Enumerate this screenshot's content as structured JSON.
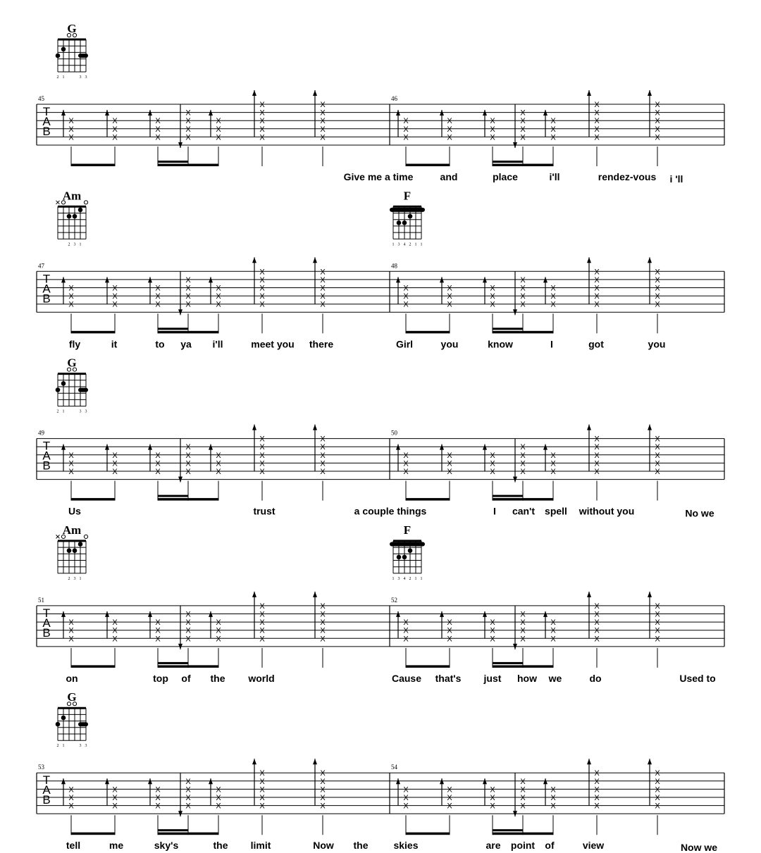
{
  "clef": [
    "T",
    "A",
    "B"
  ],
  "stroke_mark": "X",
  "chords": {
    "G": {
      "name": "G",
      "open": [
        3,
        4
      ],
      "muted": [],
      "dots": [
        [
          6,
          3
        ],
        [
          5,
          2
        ],
        [
          2,
          3
        ],
        [
          1,
          3
        ]
      ],
      "barre": null,
      "fingers": [
        "2",
        "1",
        "",
        "",
        "3",
        "3"
      ]
    },
    "Am": {
      "name": "Am",
      "open": [
        5,
        1
      ],
      "muted": [
        6
      ],
      "dots": [
        [
          4,
          2
        ],
        [
          3,
          2
        ],
        [
          2,
          1
        ]
      ],
      "barre": null,
      "fingers": [
        "",
        "",
        "2",
        "3",
        "1",
        ""
      ]
    },
    "F": {
      "name": "F",
      "open": [],
      "muted": [],
      "dots": [
        [
          5,
          3
        ],
        [
          4,
          3
        ],
        [
          3,
          2
        ]
      ],
      "barre": 1,
      "fingers": [
        "1",
        "3",
        "4",
        "2",
        "1",
        "1"
      ]
    }
  },
  "systems": [
    {
      "measures": [
        "45",
        "46"
      ],
      "chords": [
        "G",
        null
      ],
      "lyrics": [
        "Give me a time",
        "and",
        "place",
        "i'll",
        "rendez-vous",
        "i 'll"
      ]
    },
    {
      "measures": [
        "47",
        "48"
      ],
      "chords": [
        "Am",
        "F"
      ],
      "lyrics": [
        "fly",
        "it",
        "to",
        "ya",
        "i'll",
        "meet you",
        "there",
        "Girl",
        "you",
        "know",
        "I",
        "got",
        "you"
      ]
    },
    {
      "measures": [
        "49",
        "50"
      ],
      "chords": [
        "G",
        null
      ],
      "lyrics": [
        "Us",
        "trust",
        "a couple things",
        "I",
        "can't",
        "spell",
        "without you",
        "No we"
      ]
    },
    {
      "measures": [
        "51",
        "52"
      ],
      "chords": [
        "Am",
        "F"
      ],
      "lyrics": [
        "on",
        "top",
        "of",
        "the",
        "world",
        "Cause",
        "that's",
        "just",
        "how",
        "we",
        "do",
        "Used to"
      ]
    },
    {
      "measures": [
        "53",
        "54"
      ],
      "chords": [
        "G",
        null
      ],
      "lyrics": [
        "tell",
        "me",
        "sky's",
        "the",
        "limit",
        "Now",
        "the",
        "skies",
        "are",
        "point",
        "of",
        "view",
        "Now we"
      ]
    }
  ]
}
